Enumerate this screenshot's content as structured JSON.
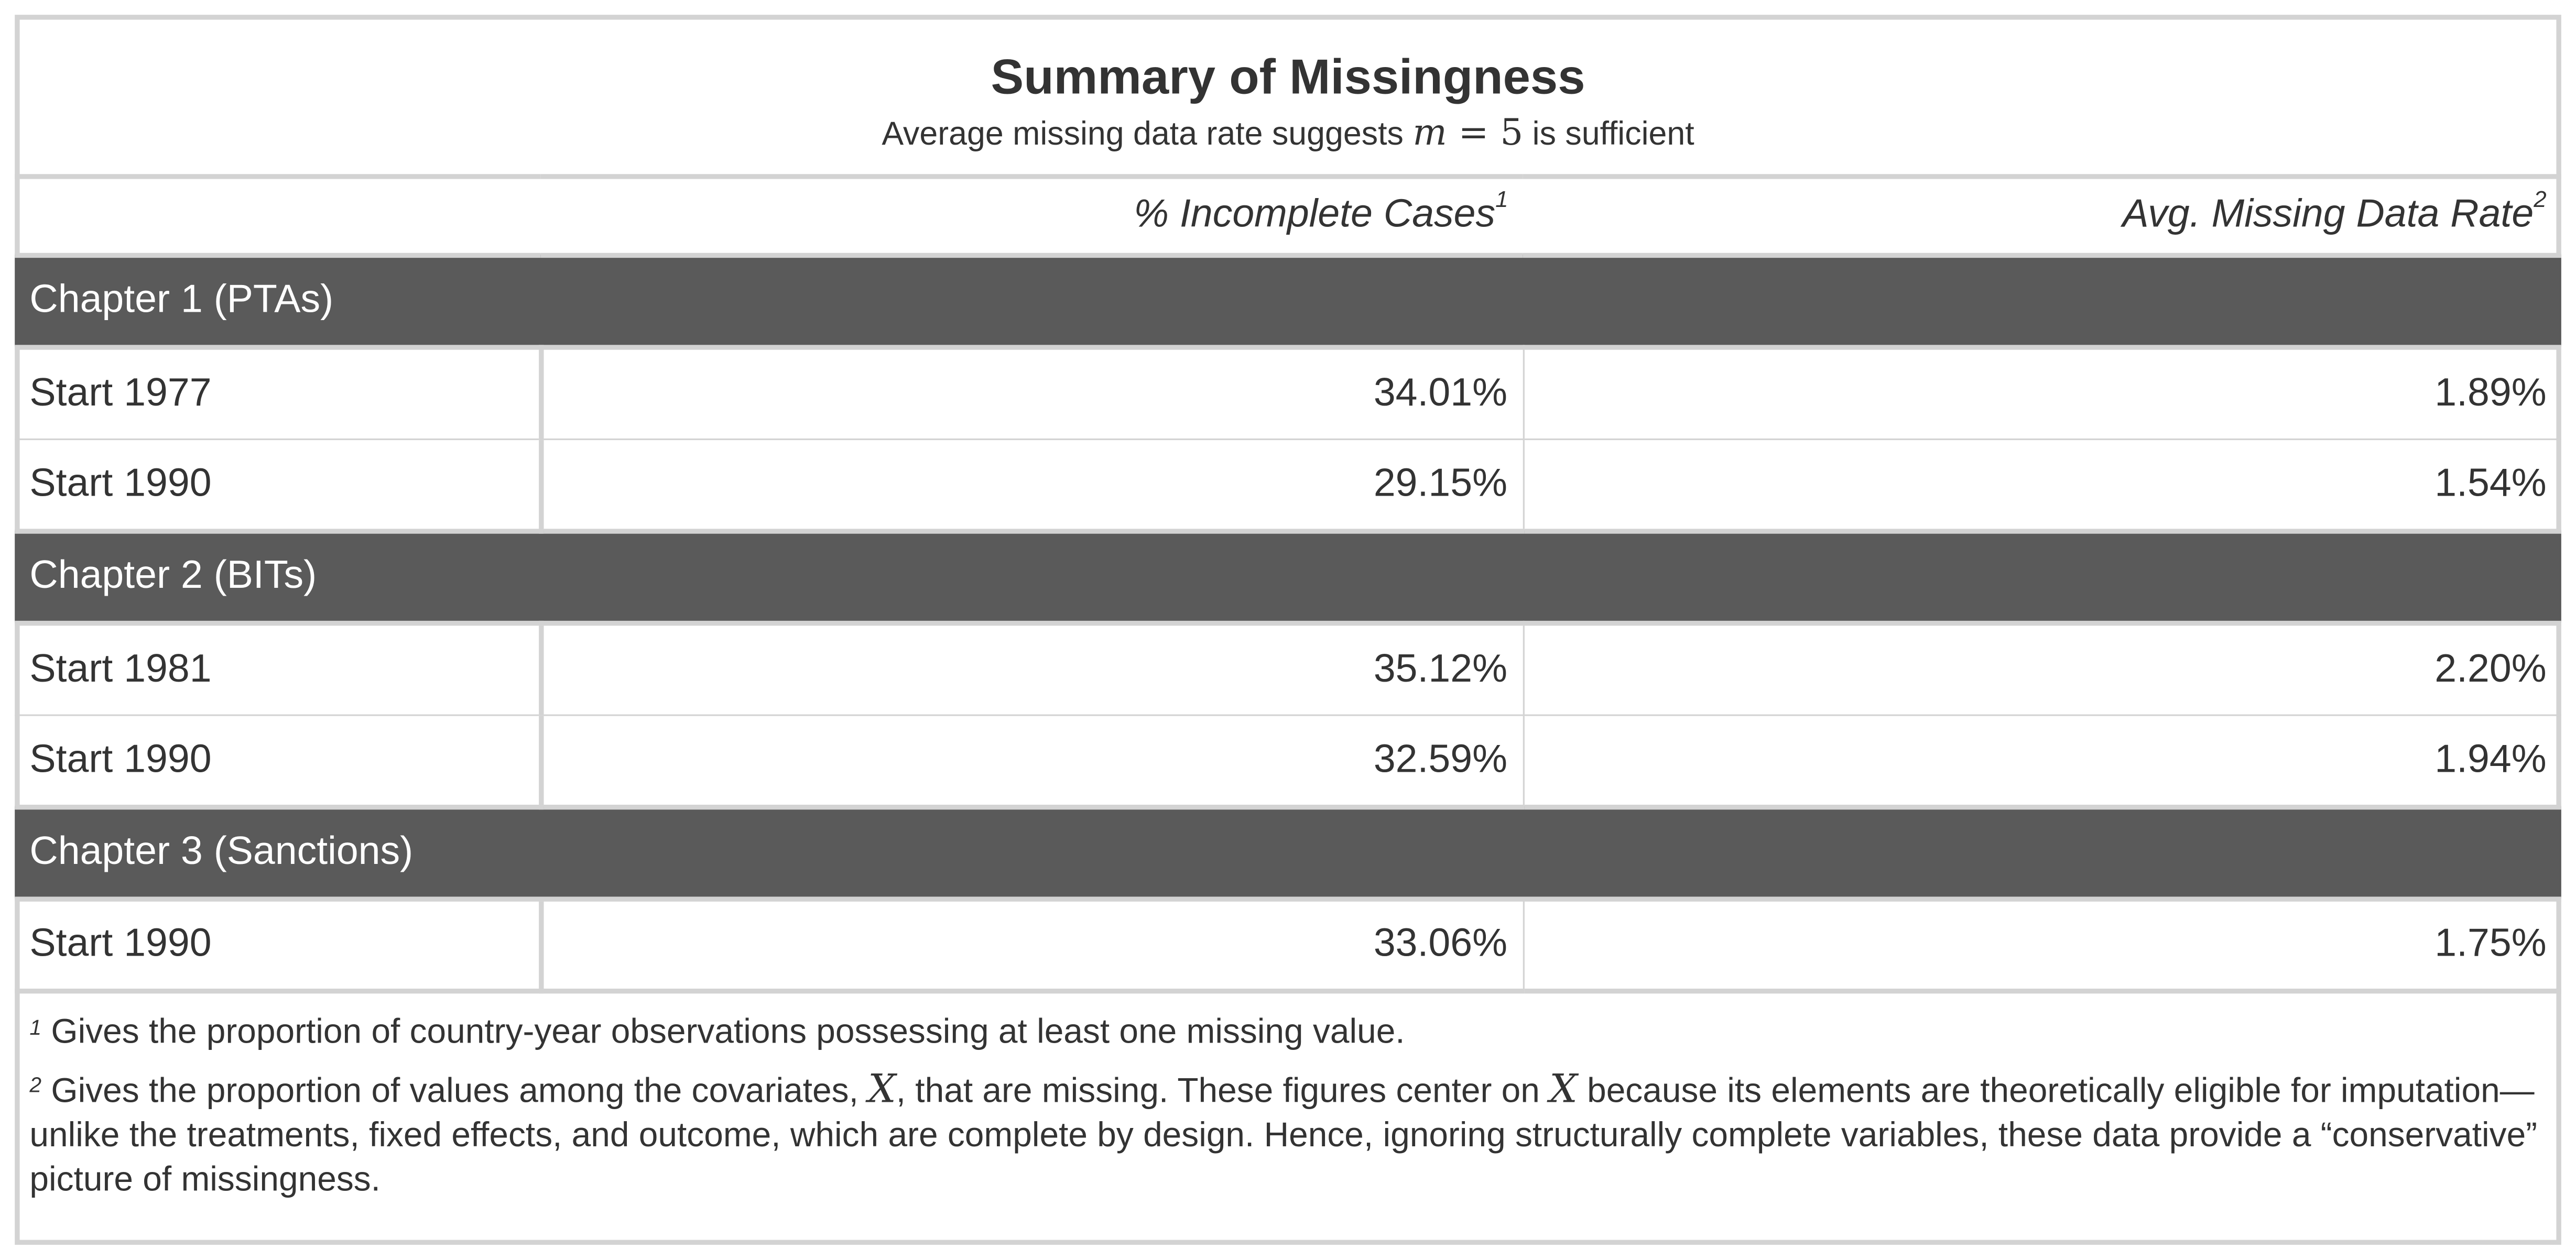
{
  "table": {
    "title": "Summary of Missingness",
    "subtitle": {
      "before": "Average missing data rate suggests ",
      "math_var": "m",
      "math_eq": " = ",
      "math_num": "5",
      "after": " is sufficient"
    },
    "columns": [
      {
        "label": "% Incomplete Cases",
        "footnote_mark": "1"
      },
      {
        "label": "Avg. Missing Data Rate",
        "footnote_mark": "2"
      }
    ],
    "groups": [
      {
        "label": "Chapter 1 (PTAs)",
        "rows": [
          {
            "label": "Start 1977",
            "incomplete": "34.01%",
            "missing_rate": "1.89%"
          },
          {
            "label": "Start 1990",
            "incomplete": "29.15%",
            "missing_rate": "1.54%"
          }
        ]
      },
      {
        "label": "Chapter 2 (BITs)",
        "rows": [
          {
            "label": "Start 1981",
            "incomplete": "35.12%",
            "missing_rate": "2.20%"
          },
          {
            "label": "Start 1990",
            "incomplete": "32.59%",
            "missing_rate": "1.94%"
          }
        ]
      },
      {
        "label": "Chapter 3 (Sanctions)",
        "rows": [
          {
            "label": "Start 1990",
            "incomplete": "33.06%",
            "missing_rate": "1.75%"
          }
        ]
      }
    ],
    "footnotes": [
      {
        "mark": "1",
        "text": " Gives the proportion of country-year observations possessing at least one missing value."
      },
      {
        "mark": "2",
        "part1": " Gives the proportion of values among the covariates, ",
        "var1": "X",
        "part2": ", that are missing. These figures center on ",
        "var2": "X",
        "part3": " because its elements are theoretically eligible for imputation—unlike the treatments, fixed effects, and outcome, which are complete by design. Hence, ignoring structurally complete variables, these data provide a “conservative” picture of missingness."
      }
    ]
  }
}
